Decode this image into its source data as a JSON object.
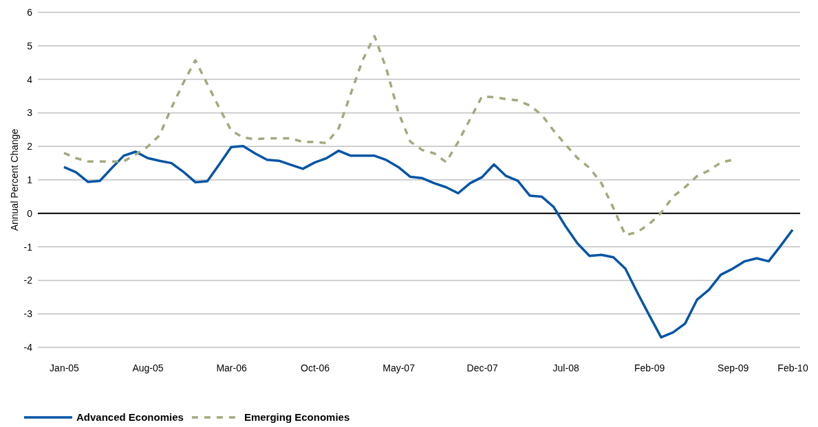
{
  "chart_data": {
    "type": "line",
    "ylabel": "Annual Percent Change",
    "categories": [
      "Jan-05",
      null,
      null,
      null,
      null,
      null,
      null,
      "Aug-05",
      null,
      null,
      null,
      null,
      null,
      null,
      "Mar-06",
      null,
      null,
      null,
      null,
      null,
      null,
      "Oct-06",
      null,
      null,
      null,
      null,
      null,
      null,
      "May-07",
      null,
      null,
      null,
      null,
      null,
      null,
      "Dec-07",
      null,
      null,
      null,
      null,
      null,
      null,
      "Jul-08",
      null,
      null,
      null,
      null,
      null,
      null,
      "Feb-09",
      null,
      null,
      null,
      null,
      null,
      null,
      "Sep-09",
      null,
      null,
      null,
      null,
      "Feb-10"
    ],
    "series": [
      {
        "name": "Advanced Economies",
        "color": "#0054a6",
        "line_style": "solid",
        "values": [
          1.38,
          1.23,
          0.94,
          0.97,
          1.35,
          1.72,
          1.84,
          1.65,
          1.57,
          1.5,
          1.24,
          0.93,
          0.96,
          1.46,
          1.98,
          2.01,
          1.79,
          1.6,
          1.57,
          1.45,
          1.33,
          1.52,
          1.65,
          1.87,
          1.72,
          1.72,
          1.72,
          1.59,
          1.38,
          1.09,
          1.05,
          0.9,
          0.78,
          0.6,
          0.9,
          1.08,
          1.46,
          1.12,
          0.97,
          0.53,
          0.5,
          0.19,
          -0.39,
          -0.9,
          -1.27,
          -1.24,
          -1.31,
          -1.65,
          -2.36,
          -3.04,
          -3.7,
          -3.55,
          -3.29,
          -2.58,
          -2.28,
          -1.83,
          -1.65,
          -1.43,
          -1.34,
          -1.43,
          -0.97,
          -0.49
        ]
      },
      {
        "name": "Emerging Economies",
        "color": "#a3a97c",
        "line_style": "dashed",
        "values": [
          1.8,
          1.65,
          1.55,
          1.55,
          1.55,
          1.55,
          1.76,
          1.99,
          2.33,
          3.15,
          3.9,
          4.57,
          3.86,
          3.15,
          2.47,
          2.27,
          2.21,
          2.24,
          2.24,
          2.24,
          2.13,
          2.13,
          2.1,
          2.54,
          3.56,
          4.57,
          5.29,
          4.31,
          3.01,
          2.14,
          1.89,
          1.79,
          1.53,
          2.13,
          2.81,
          3.49,
          3.47,
          3.41,
          3.37,
          3.22,
          2.94,
          2.47,
          2.05,
          1.65,
          1.36,
          0.9,
          0.16,
          -0.65,
          -0.56,
          -0.32,
          0.02,
          0.5,
          0.78,
          1.11,
          1.28,
          1.52,
          1.6,
          null,
          null,
          null,
          null,
          null
        ]
      }
    ],
    "ylim": [
      -4,
      6
    ],
    "yticks": [
      -4,
      -3,
      -2,
      -1,
      0,
      1,
      2,
      3,
      4,
      5,
      6
    ],
    "ref_lines": [
      {
        "axis": "y",
        "value": 0,
        "color": "#000000"
      }
    ],
    "grid": "y",
    "legend": "bottom left",
    "marker": "none"
  }
}
